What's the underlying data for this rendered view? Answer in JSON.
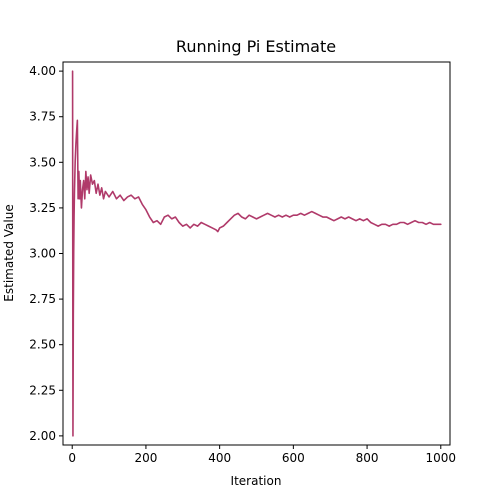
{
  "chart_data": {
    "type": "line",
    "title": "Running Pi Estimate",
    "xlabel": "Iteration",
    "ylabel": "Estimated Value",
    "xlim": [
      -25,
      1025
    ],
    "ylim": [
      1.95,
      4.05
    ],
    "xticks": [
      0,
      200,
      400,
      600,
      800,
      1000
    ],
    "yticks": [
      2.0,
      2.25,
      2.5,
      2.75,
      3.0,
      3.25,
      3.5,
      3.75,
      4.0
    ],
    "ytick_labels": [
      "2.00",
      "2.25",
      "2.50",
      "2.75",
      "3.00",
      "3.25",
      "3.50",
      "3.75",
      "4.00"
    ],
    "xtick_labels": [
      "0",
      "200",
      "400",
      "600",
      "800",
      "1000"
    ],
    "grid": false,
    "series": [
      {
        "color": "#b03a6a",
        "x": [
          1,
          2,
          3,
          4,
          5,
          6,
          8,
          10,
          12,
          14,
          16,
          18,
          20,
          22,
          25,
          28,
          31,
          34,
          37,
          40,
          43,
          46,
          50,
          55,
          60,
          65,
          70,
          75,
          80,
          85,
          90,
          100,
          110,
          120,
          130,
          140,
          150,
          160,
          170,
          180,
          190,
          200,
          210,
          220,
          230,
          240,
          250,
          260,
          270,
          280,
          290,
          300,
          310,
          320,
          330,
          340,
          350,
          360,
          370,
          380,
          390,
          395,
          400,
          410,
          420,
          430,
          440,
          450,
          460,
          470,
          480,
          490,
          500,
          510,
          520,
          530,
          540,
          550,
          560,
          570,
          580,
          590,
          600,
          610,
          620,
          630,
          640,
          650,
          660,
          670,
          680,
          690,
          700,
          710,
          720,
          730,
          740,
          750,
          760,
          770,
          780,
          790,
          800,
          810,
          820,
          830,
          840,
          850,
          860,
          870,
          880,
          890,
          900,
          910,
          920,
          930,
          940,
          950,
          960,
          970,
          980,
          990,
          1000
        ],
        "y": [
          4.0,
          2.0,
          2.67,
          3.0,
          3.2,
          3.33,
          3.5,
          3.6,
          3.67,
          3.73,
          3.3,
          3.45,
          3.3,
          3.4,
          3.25,
          3.35,
          3.4,
          3.3,
          3.45,
          3.35,
          3.42,
          3.33,
          3.43,
          3.38,
          3.4,
          3.33,
          3.38,
          3.32,
          3.36,
          3.3,
          3.34,
          3.31,
          3.34,
          3.3,
          3.32,
          3.29,
          3.31,
          3.32,
          3.3,
          3.31,
          3.27,
          3.24,
          3.2,
          3.17,
          3.18,
          3.16,
          3.2,
          3.21,
          3.19,
          3.2,
          3.17,
          3.15,
          3.16,
          3.14,
          3.16,
          3.15,
          3.17,
          3.16,
          3.15,
          3.14,
          3.13,
          3.12,
          3.14,
          3.15,
          3.17,
          3.19,
          3.21,
          3.22,
          3.2,
          3.19,
          3.21,
          3.2,
          3.19,
          3.2,
          3.21,
          3.22,
          3.21,
          3.2,
          3.21,
          3.2,
          3.21,
          3.2,
          3.21,
          3.21,
          3.22,
          3.21,
          3.22,
          3.23,
          3.22,
          3.21,
          3.2,
          3.2,
          3.19,
          3.18,
          3.19,
          3.2,
          3.19,
          3.2,
          3.19,
          3.18,
          3.19,
          3.18,
          3.19,
          3.17,
          3.16,
          3.15,
          3.16,
          3.16,
          3.15,
          3.16,
          3.16,
          3.17,
          3.17,
          3.16,
          3.17,
          3.18,
          3.17,
          3.17,
          3.16,
          3.17,
          3.16,
          3.16,
          3.16
        ]
      }
    ]
  }
}
